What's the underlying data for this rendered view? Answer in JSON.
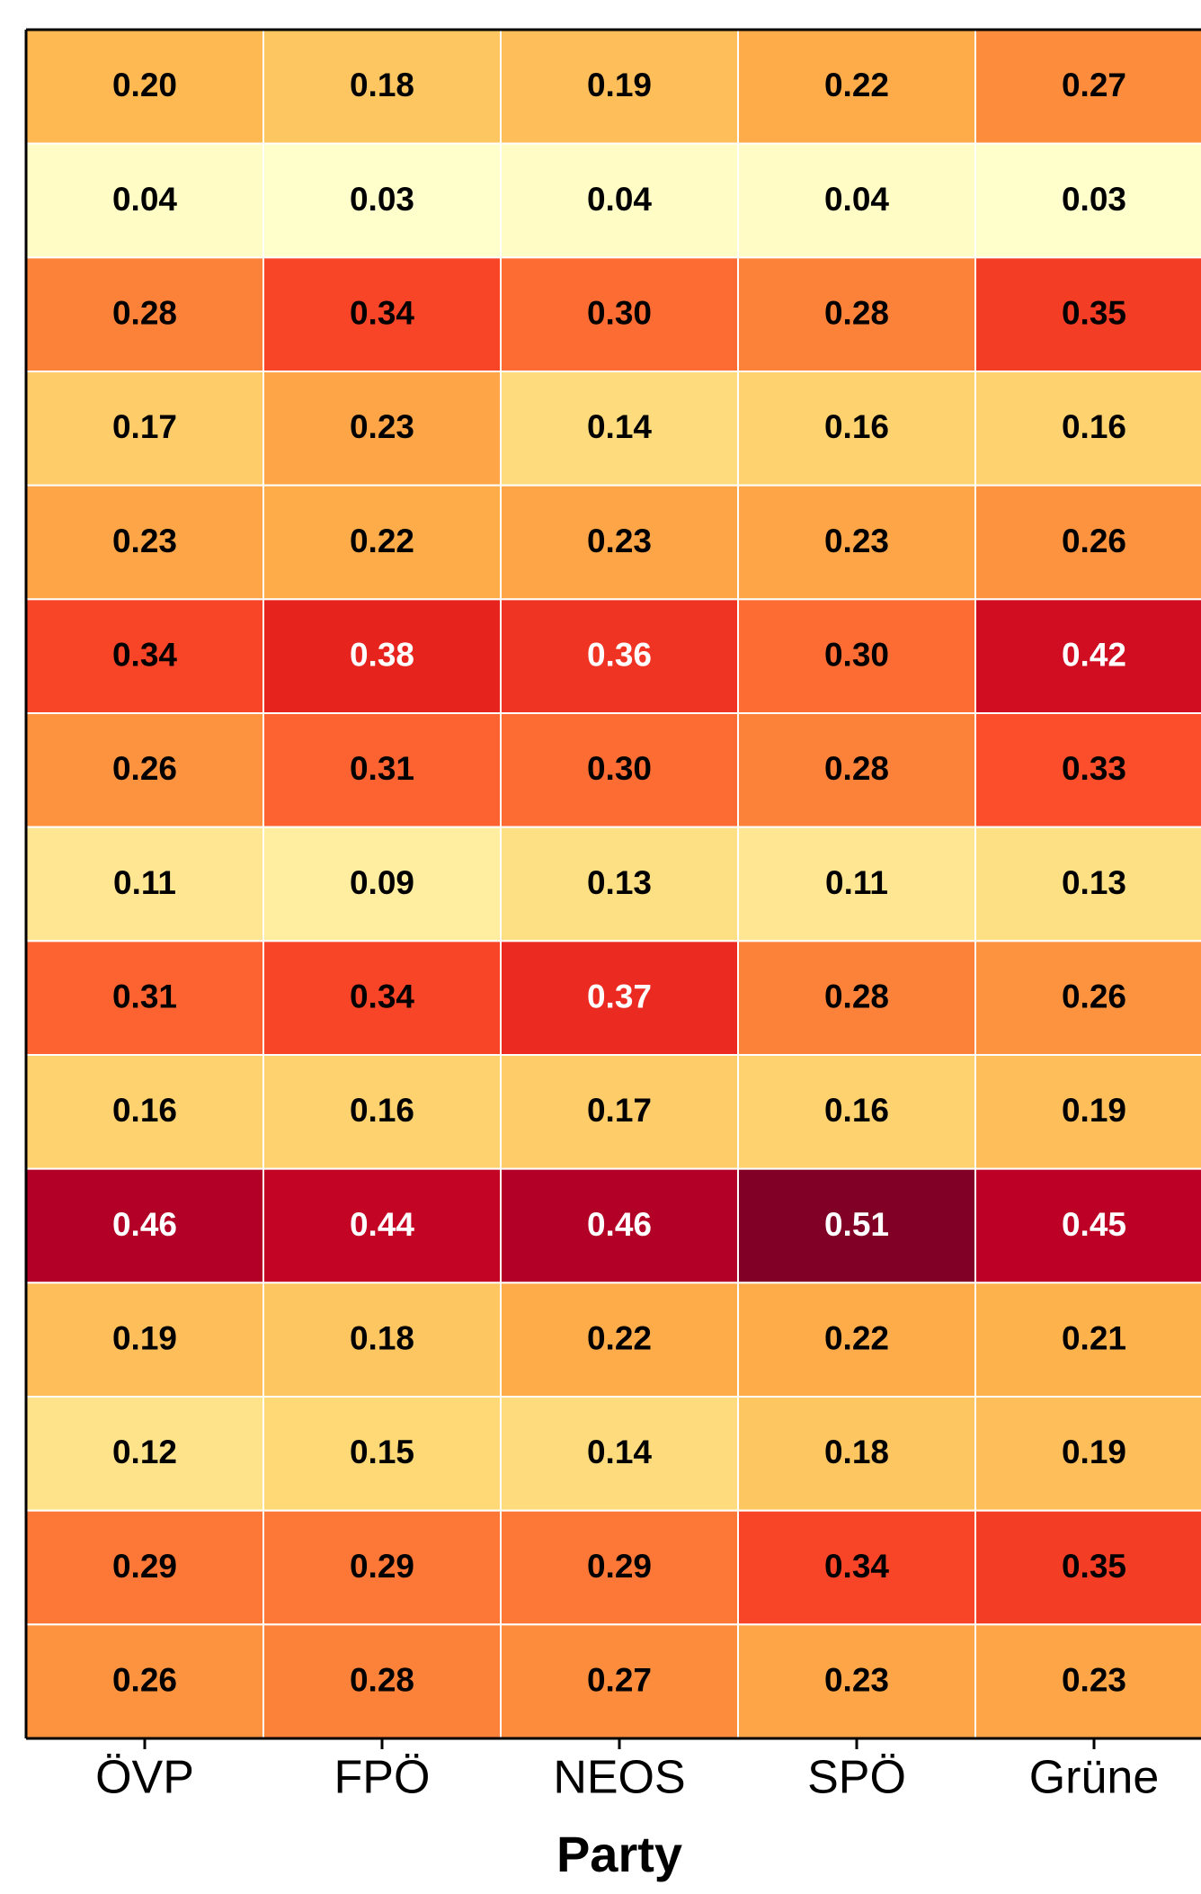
{
  "chart_data": {
    "type": "heatmap",
    "x_label": "Party",
    "categories": [
      "ÖVP",
      "FPÖ",
      "NEOS",
      "SPÖ",
      "Grüne"
    ],
    "colormap": "YlOrRd",
    "values": [
      [
        0.2,
        0.18,
        0.19,
        0.22,
        0.27
      ],
      [
        0.04,
        0.03,
        0.04,
        0.04,
        0.03
      ],
      [
        0.28,
        0.34,
        0.3,
        0.28,
        0.35
      ],
      [
        0.17,
        0.23,
        0.14,
        0.16,
        0.16
      ],
      [
        0.23,
        0.22,
        0.23,
        0.23,
        0.26
      ],
      [
        0.34,
        0.38,
        0.36,
        0.3,
        0.42
      ],
      [
        0.26,
        0.31,
        0.3,
        0.28,
        0.33
      ],
      [
        0.11,
        0.09,
        0.13,
        0.11,
        0.13
      ],
      [
        0.31,
        0.34,
        0.37,
        0.28,
        0.26
      ],
      [
        0.16,
        0.16,
        0.17,
        0.16,
        0.19
      ],
      [
        0.46,
        0.44,
        0.46,
        0.51,
        0.45
      ],
      [
        0.19,
        0.18,
        0.22,
        0.22,
        0.21
      ],
      [
        0.12,
        0.15,
        0.14,
        0.18,
        0.19
      ],
      [
        0.29,
        0.29,
        0.29,
        0.34,
        0.35
      ],
      [
        0.26,
        0.28,
        0.27,
        0.23,
        0.23
      ]
    ],
    "value_labels": [
      [
        "0.20",
        "0.18",
        "0.19",
        "0.22",
        "0.27"
      ],
      [
        "0.04",
        "0.03",
        "0.04",
        "0.04",
        "0.03"
      ],
      [
        "0.28",
        "0.34",
        "0.30",
        "0.28",
        "0.35"
      ],
      [
        "0.17",
        "0.23",
        "0.14",
        "0.16",
        "0.16"
      ],
      [
        "0.23",
        "0.22",
        "0.23",
        "0.23",
        "0.26"
      ],
      [
        "0.34",
        "0.38",
        "0.36",
        "0.30",
        "0.42"
      ],
      [
        "0.26",
        "0.31",
        "0.30",
        "0.28",
        "0.33"
      ],
      [
        "0.11",
        "0.09",
        "0.13",
        "0.11",
        "0.13"
      ],
      [
        "0.31",
        "0.34",
        "0.37",
        "0.28",
        "0.26"
      ],
      [
        "0.16",
        "0.16",
        "0.17",
        "0.16",
        "0.19"
      ],
      [
        "0.46",
        "0.44",
        "0.46",
        "0.51",
        "0.45"
      ],
      [
        "0.19",
        "0.18",
        "0.22",
        "0.22",
        "0.21"
      ],
      [
        "0.12",
        "0.15",
        "0.14",
        "0.18",
        "0.19"
      ],
      [
        "0.29",
        "0.29",
        "0.29",
        "0.34",
        "0.35"
      ],
      [
        "0.26",
        "0.28",
        "0.27",
        "0.23",
        "0.23"
      ]
    ]
  }
}
